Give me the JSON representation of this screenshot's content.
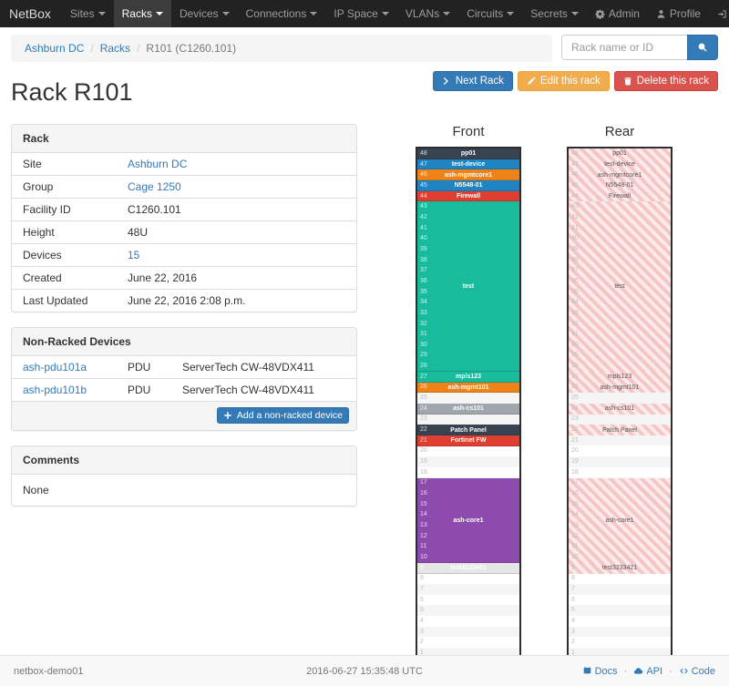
{
  "navbar": {
    "brand": "NetBox",
    "items": [
      {
        "label": "Sites"
      },
      {
        "label": "Racks",
        "active": true
      },
      {
        "label": "Devices"
      },
      {
        "label": "Connections"
      },
      {
        "label": "IP Space"
      },
      {
        "label": "VLANs"
      },
      {
        "label": "Circuits"
      },
      {
        "label": "Secrets"
      }
    ],
    "right": [
      {
        "label": "Admin",
        "icon": "gear-icon"
      },
      {
        "label": "Profile",
        "icon": "user-icon"
      },
      {
        "label": "Log out",
        "icon": "logout-icon"
      }
    ]
  },
  "breadcrumb": {
    "items": [
      {
        "label": "Ashburn DC",
        "link": true
      },
      {
        "label": "Racks",
        "link": true
      },
      {
        "label": "R101 (C1260.101)",
        "link": false
      }
    ]
  },
  "search": {
    "placeholder": "Rack name or ID"
  },
  "actions": {
    "next": "Next Rack",
    "edit": "Edit this rack",
    "delete": "Delete this rack"
  },
  "page_title": "Rack R101",
  "rack_panel": {
    "title": "Rack",
    "rows": [
      {
        "label": "Site",
        "value": "Ashburn DC",
        "link": true
      },
      {
        "label": "Group",
        "value": "Cage 1250",
        "link": true
      },
      {
        "label": "Facility ID",
        "value": "C1260.101"
      },
      {
        "label": "Height",
        "value": "48U"
      },
      {
        "label": "Devices",
        "value": "15",
        "link": true
      },
      {
        "label": "Created",
        "value": "June 22, 2016"
      },
      {
        "label": "Last Updated",
        "value": "June 22, 2016 2:08 p.m."
      }
    ]
  },
  "nonracked_panel": {
    "title": "Non-Racked Devices",
    "rows": [
      {
        "name": "ash-pdu101a",
        "role": "PDU",
        "type": "ServerTech CW-48VDX411"
      },
      {
        "name": "ash-pdu101b",
        "role": "PDU",
        "type": "ServerTech CW-48VDX411"
      }
    ],
    "add_button": "Add a non-racked device"
  },
  "comments_panel": {
    "title": "Comments",
    "body": "None"
  },
  "elevations": {
    "front_title": "Front",
    "rear_title": "Rear",
    "units_total": 48,
    "devices": [
      {
        "name": "pp01",
        "top_u": 48,
        "height": 1,
        "color": "#384352"
      },
      {
        "name": "test-device",
        "top_u": 47,
        "height": 1,
        "color": "#1f85c2"
      },
      {
        "name": "ash-mgmtcore1",
        "top_u": 46,
        "height": 1,
        "color": "#ef8318"
      },
      {
        "name": "N5548-01",
        "top_u": 45,
        "height": 1,
        "color": "#1f85c2"
      },
      {
        "name": "Firewall",
        "top_u": 44,
        "height": 1,
        "color": "#df3e31"
      },
      {
        "name": "test",
        "top_u": 43,
        "height": 16,
        "color": "#18bc9c"
      },
      {
        "name": "mpls123",
        "top_u": 27,
        "height": 1,
        "color": "#18bc9c"
      },
      {
        "name": "ash-mgmt101",
        "top_u": 26,
        "height": 1,
        "color": "#ef8318"
      },
      {
        "name": "ash-cs101",
        "top_u": 24,
        "height": 1,
        "color": "#9fa6ad"
      },
      {
        "name": "Patch Panel",
        "top_u": 22,
        "height": 1,
        "color": "#384352"
      },
      {
        "name": "Fortinet FW",
        "top_u": 21,
        "height": 1,
        "color": "#df3e31",
        "rear_visible": false
      },
      {
        "name": "ash-core1",
        "top_u": 17,
        "height": 8,
        "color": "#8d4bad"
      },
      {
        "name": "test3233421",
        "top_u": 9,
        "height": 1,
        "color": "#e6e6e6",
        "text_color": "#ffffff"
      }
    ]
  },
  "footer": {
    "hostname": "netbox-demo01",
    "timestamp": "2016-06-27 15:35:48 UTC",
    "separator": "·",
    "links": [
      {
        "label": "Docs",
        "icon": "book-icon"
      },
      {
        "label": "API",
        "icon": "cloud-icon"
      },
      {
        "label": "Code",
        "icon": "code-icon"
      }
    ]
  }
}
